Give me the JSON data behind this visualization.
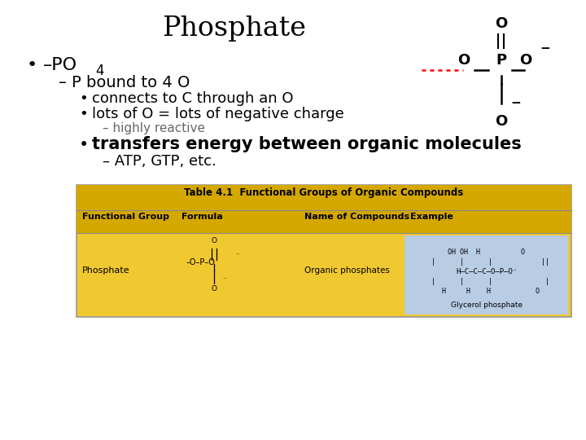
{
  "title": "Phosphate",
  "bg_color": "#ffffff",
  "title_fontsize": 24,
  "bullet1_text": "–PO",
  "bullet1_sub": "4",
  "bullet2": "– P bound to 4 O",
  "bullet3": "connects to C through an O",
  "bullet4": "lots of O = lots of negative charge",
  "bullet5": "– highly reactive",
  "bullet6": "transfers energy between organic molecules",
  "bullet7": "– ATP, GTP, etc.",
  "table_title": "Table 4.1  Functional Groups of Organic Compounds",
  "col_headers": [
    "Functional Group",
    "Formula",
    "Name of Compounds",
    "Example"
  ],
  "table_row_label": "Phosphate",
  "table_name": "Organic phosphates",
  "table_example": "Glycerol phosphate",
  "table_bg": "#f0c830",
  "table_header_bg": "#d4a800",
  "example_highlight": "#b8cce4",
  "gray_text": "#666666"
}
